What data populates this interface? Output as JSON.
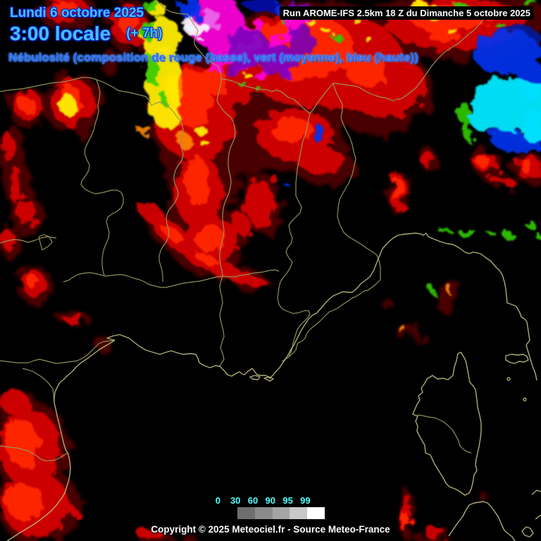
{
  "header": {
    "date": "Lundi 6 octobre 2025",
    "time": "3:00 locale",
    "offset": "(+ 7h)",
    "subtitle": "Nébulosité (composition de rouge (basse), vert (moyenne), bleu (haute))",
    "run_info": "Run AROME-IFS 2.5km 18 Z du Dimanche 5 octobre 2025"
  },
  "legend": {
    "values": [
      "0",
      "30",
      "60",
      "90",
      "95",
      "99"
    ],
    "box_colors": [
      "#6e6e6e",
      "#8b8b8b",
      "#a5a5a5",
      "#c8c8c8",
      "#ffffff"
    ],
    "label_color": "#55ffff",
    "unit": "%"
  },
  "footer": {
    "copyright": "Copyright © 2025 Meteociel.fr - Source Meteo-France"
  },
  "map": {
    "region": "Sud-Est de la France / Corse / Ligurie",
    "colors": {
      "background": "#000000",
      "border": "#97975f",
      "coastline": "#b5b57a",
      "cloud_low": "#d80000",
      "cloud_low_core": "#ff2600",
      "cloud_low_halo": "#4d0000",
      "cloud_mid": "#30cc00",
      "cloud_low_mid_mix": "#ffee00",
      "cloud_high": "#0033ee",
      "cloud_mid_high_mix": "#00e8ff",
      "cloud_low_high_mix": "#ff00dd",
      "cloud_all_mix": "#ffffff"
    }
  }
}
